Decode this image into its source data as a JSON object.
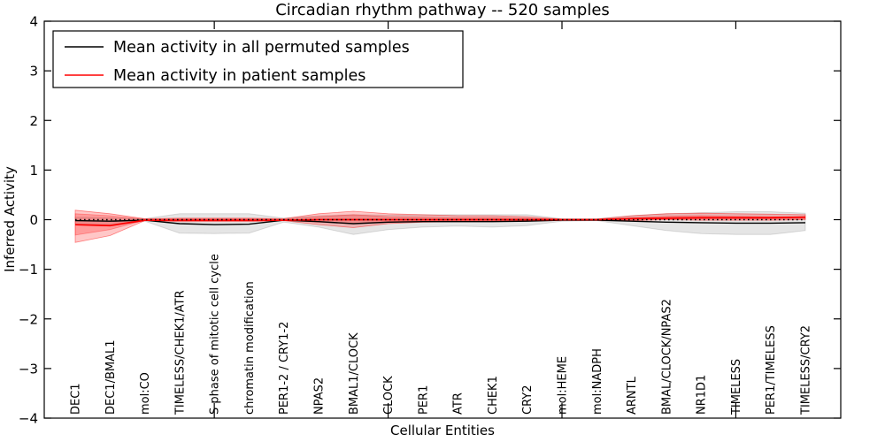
{
  "figure": {
    "title": "Circadian rhythm pathway -- 520 samples",
    "xlabel": "Cellular Entities",
    "ylabel": "Inferred Activity"
  },
  "legend": {
    "items": [
      {
        "label": "Mean activity in all permuted samples",
        "color": "#000000"
      },
      {
        "label": "Mean activity in patient samples",
        "color": "#ff0000"
      }
    ]
  },
  "chart_data": {
    "type": "line",
    "title": "Circadian rhythm pathway -- 520 samples",
    "xlabel": "Cellular Entities",
    "ylabel": "Inferred Activity",
    "ylim": [
      -4,
      4
    ],
    "yticks": [
      -4,
      -3,
      -2,
      -1,
      0,
      1,
      2,
      3,
      4
    ],
    "x_major_tick_indices": [
      4,
      9,
      14,
      19
    ],
    "grid": false,
    "legend_position": "upper left",
    "zero_line": {
      "y": 0,
      "style": "dotted",
      "color": "#000000"
    },
    "categories": [
      "DEC1",
      "DEC1/BMAL1",
      "mol:CO",
      "TIMELESS/CHEK1/ATR",
      "S phase of mitotic cell cycle",
      "chromatin modification",
      "PER1-2 / CRY1-2",
      "NPAS2",
      "BMAL1/CLOCK",
      "CLOCK",
      "PER1",
      "ATR",
      "CHEK1",
      "CRY2",
      "mol:HEME",
      "mol:NADPH",
      "ARNTL",
      "BMAL/CLOCK/NPAS2",
      "NR1D1",
      "TIMELESS",
      "PER1/TIMELESS",
      "TIMELESS/CRY2"
    ],
    "series": [
      {
        "name": "Mean activity in all permuted samples",
        "color": "#000000",
        "band_color": "#000000",
        "band_opacity": 0.1,
        "values": [
          -0.02,
          -0.03,
          -0.01,
          -0.08,
          -0.1,
          -0.09,
          -0.01,
          -0.04,
          -0.08,
          -0.05,
          -0.04,
          -0.04,
          -0.04,
          -0.03,
          -0.01,
          -0.01,
          -0.03,
          -0.05,
          -0.06,
          -0.07,
          -0.07,
          -0.06
        ],
        "band_lo": [
          -0.1,
          -0.12,
          -0.03,
          -0.27,
          -0.28,
          -0.27,
          -0.05,
          -0.15,
          -0.3,
          -0.2,
          -0.15,
          -0.13,
          -0.15,
          -0.12,
          -0.03,
          -0.02,
          -0.12,
          -0.22,
          -0.28,
          -0.3,
          -0.3,
          -0.22
        ],
        "band_hi": [
          0.05,
          0.04,
          0.02,
          0.12,
          0.12,
          0.12,
          0.03,
          0.08,
          0.1,
          0.09,
          0.1,
          0.1,
          0.1,
          0.1,
          0.02,
          0.02,
          0.08,
          0.12,
          0.14,
          0.16,
          0.16,
          0.13
        ]
      },
      {
        "name": "Mean activity in patient samples",
        "color": "#ff0000",
        "band_color": "#ff0000",
        "band_opacity": 0.22,
        "inner_band_opacity": 0.22,
        "values": [
          -0.1,
          -0.12,
          -0.01,
          -0.01,
          -0.01,
          -0.01,
          -0.01,
          0.0,
          0.0,
          0.0,
          0.0,
          0.0,
          0.0,
          0.0,
          0.0,
          0.0,
          0.02,
          0.03,
          0.04,
          0.04,
          0.04,
          0.05
        ],
        "band_lo": [
          -0.46,
          -0.32,
          -0.02,
          -0.04,
          -0.04,
          -0.04,
          -0.02,
          -0.1,
          -0.16,
          -0.08,
          -0.05,
          -0.04,
          -0.04,
          -0.03,
          -0.01,
          -0.01,
          -0.02,
          0.0,
          -0.01,
          -0.01,
          -0.01,
          0.0
        ],
        "band_hi": [
          0.19,
          0.12,
          0.02,
          0.03,
          0.03,
          0.03,
          0.02,
          0.12,
          0.17,
          0.12,
          0.1,
          0.08,
          0.08,
          0.06,
          0.01,
          0.01,
          0.08,
          0.12,
          0.13,
          0.12,
          0.11,
          0.1
        ],
        "inner_band_lo": [
          -0.31,
          -0.2,
          -0.01,
          -0.02,
          -0.02,
          -0.02,
          -0.01,
          -0.05,
          -0.08,
          -0.04,
          -0.03,
          -0.02,
          -0.02,
          -0.02,
          -0.01,
          -0.01,
          -0.01,
          0.01,
          0.01,
          0.01,
          0.01,
          0.01
        ],
        "inner_band_hi": [
          0.12,
          0.08,
          0.01,
          0.02,
          0.02,
          0.02,
          0.01,
          0.06,
          0.1,
          0.06,
          0.05,
          0.04,
          0.04,
          0.03,
          0.01,
          0.01,
          0.04,
          0.07,
          0.08,
          0.07,
          0.06,
          0.06
        ]
      }
    ]
  }
}
